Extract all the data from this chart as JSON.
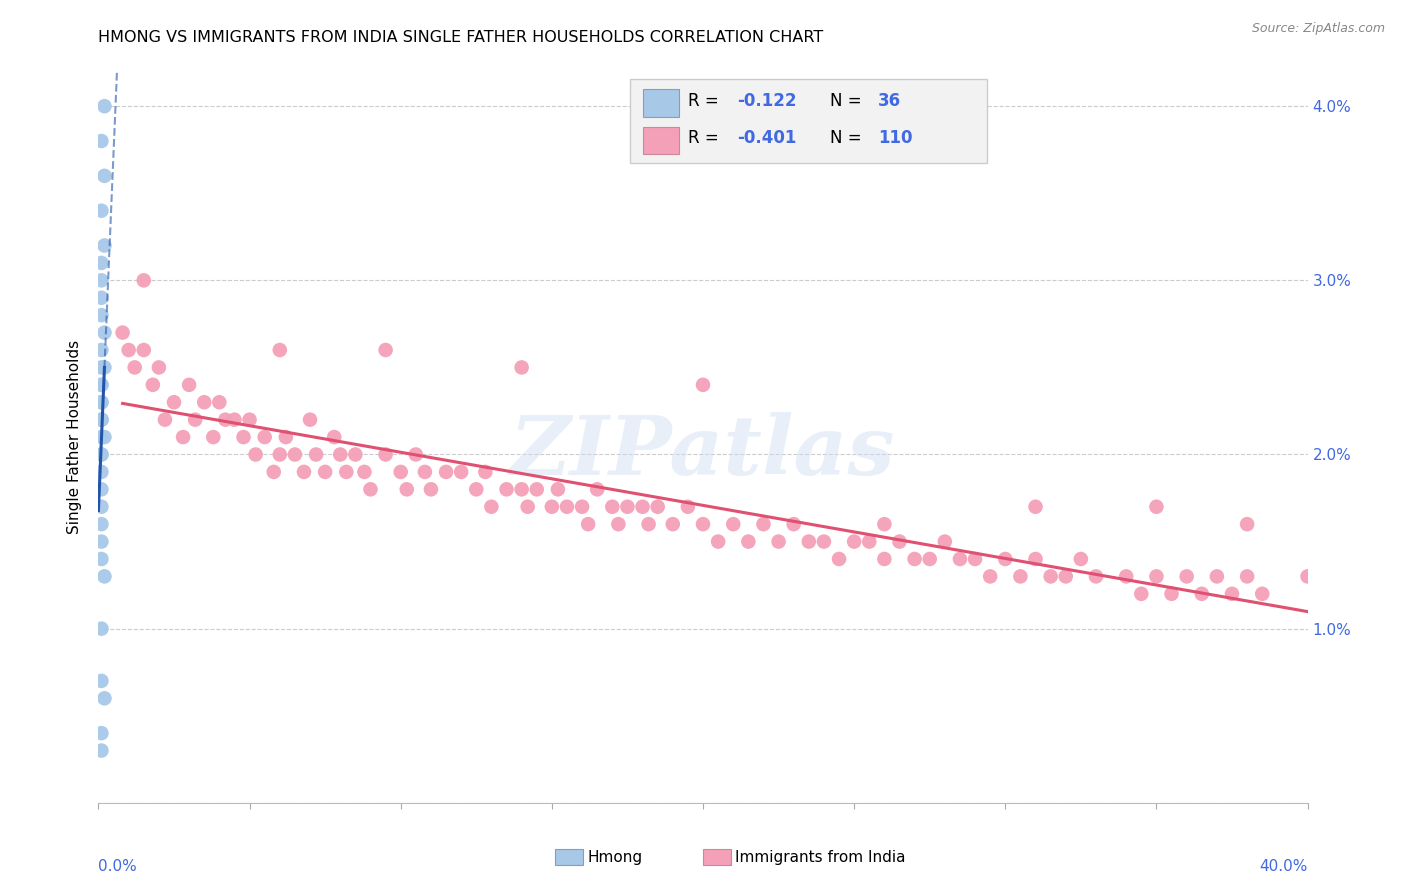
{
  "title": "HMONG VS IMMIGRANTS FROM INDIA SINGLE FATHER HOUSEHOLDS CORRELATION CHART",
  "source": "Source: ZipAtlas.com",
  "ylabel": "Single Father Households",
  "xlim": [
    0,
    0.4
  ],
  "ylim": [
    0,
    0.042
  ],
  "yticks": [
    0.0,
    0.01,
    0.02,
    0.03,
    0.04
  ],
  "ytick_labels": [
    "",
    "1.0%",
    "2.0%",
    "3.0%",
    "4.0%"
  ],
  "xtick_vals": [
    0,
    0.05,
    0.1,
    0.15,
    0.2,
    0.25,
    0.3,
    0.35,
    0.4
  ],
  "watermark": "ZIPatlas",
  "legend_r1": "-0.122",
  "legend_n1": "36",
  "legend_r2": "-0.401",
  "legend_n2": "110",
  "hmong_color": "#a8c8e8",
  "india_color": "#f4a0b8",
  "hmong_line_color": "#2255aa",
  "india_line_color": "#e05070",
  "blue_text": "#4169E1",
  "grid_color": "#cccccc",
  "hmong_x": [
    0.002,
    0.001,
    0.002,
    0.001,
    0.002,
    0.001,
    0.001,
    0.001,
    0.001,
    0.002,
    0.001,
    0.001,
    0.002,
    0.001,
    0.001,
    0.001,
    0.001,
    0.001,
    0.001,
    0.001,
    0.002,
    0.001,
    0.001,
    0.001,
    0.001,
    0.001,
    0.001,
    0.001,
    0.001,
    0.001,
    0.002,
    0.001,
    0.001,
    0.002,
    0.001,
    0.001
  ],
  "hmong_y": [
    0.04,
    0.038,
    0.036,
    0.034,
    0.032,
    0.031,
    0.03,
    0.029,
    0.028,
    0.027,
    0.026,
    0.025,
    0.025,
    0.024,
    0.024,
    0.023,
    0.023,
    0.022,
    0.022,
    0.022,
    0.021,
    0.021,
    0.02,
    0.02,
    0.019,
    0.018,
    0.017,
    0.016,
    0.015,
    0.014,
    0.013,
    0.01,
    0.007,
    0.006,
    0.004,
    0.003
  ],
  "india_x": [
    0.008,
    0.01,
    0.012,
    0.015,
    0.018,
    0.02,
    0.022,
    0.025,
    0.028,
    0.03,
    0.032,
    0.035,
    0.038,
    0.04,
    0.042,
    0.045,
    0.048,
    0.05,
    0.052,
    0.055,
    0.058,
    0.06,
    0.062,
    0.065,
    0.068,
    0.07,
    0.072,
    0.075,
    0.078,
    0.08,
    0.082,
    0.085,
    0.088,
    0.09,
    0.095,
    0.1,
    0.102,
    0.105,
    0.108,
    0.11,
    0.115,
    0.12,
    0.125,
    0.128,
    0.13,
    0.135,
    0.14,
    0.142,
    0.145,
    0.15,
    0.152,
    0.155,
    0.16,
    0.162,
    0.165,
    0.17,
    0.172,
    0.175,
    0.18,
    0.182,
    0.185,
    0.19,
    0.195,
    0.2,
    0.205,
    0.21,
    0.215,
    0.22,
    0.225,
    0.23,
    0.235,
    0.24,
    0.245,
    0.25,
    0.255,
    0.26,
    0.265,
    0.27,
    0.275,
    0.28,
    0.285,
    0.29,
    0.295,
    0.3,
    0.305,
    0.31,
    0.315,
    0.32,
    0.325,
    0.33,
    0.34,
    0.345,
    0.35,
    0.355,
    0.36,
    0.365,
    0.37,
    0.375,
    0.38,
    0.385,
    0.015,
    0.06,
    0.095,
    0.14,
    0.2,
    0.26,
    0.31,
    0.35,
    0.38,
    0.4
  ],
  "india_y": [
    0.027,
    0.026,
    0.025,
    0.026,
    0.024,
    0.025,
    0.022,
    0.023,
    0.021,
    0.024,
    0.022,
    0.023,
    0.021,
    0.023,
    0.022,
    0.022,
    0.021,
    0.022,
    0.02,
    0.021,
    0.019,
    0.02,
    0.021,
    0.02,
    0.019,
    0.022,
    0.02,
    0.019,
    0.021,
    0.02,
    0.019,
    0.02,
    0.019,
    0.018,
    0.02,
    0.019,
    0.018,
    0.02,
    0.019,
    0.018,
    0.019,
    0.019,
    0.018,
    0.019,
    0.017,
    0.018,
    0.018,
    0.017,
    0.018,
    0.017,
    0.018,
    0.017,
    0.017,
    0.016,
    0.018,
    0.017,
    0.016,
    0.017,
    0.017,
    0.016,
    0.017,
    0.016,
    0.017,
    0.016,
    0.015,
    0.016,
    0.015,
    0.016,
    0.015,
    0.016,
    0.015,
    0.015,
    0.014,
    0.015,
    0.015,
    0.014,
    0.015,
    0.014,
    0.014,
    0.015,
    0.014,
    0.014,
    0.013,
    0.014,
    0.013,
    0.014,
    0.013,
    0.013,
    0.014,
    0.013,
    0.013,
    0.012,
    0.013,
    0.012,
    0.013,
    0.012,
    0.013,
    0.012,
    0.013,
    0.012,
    0.03,
    0.026,
    0.026,
    0.025,
    0.024,
    0.016,
    0.017,
    0.017,
    0.016,
    0.013
  ]
}
